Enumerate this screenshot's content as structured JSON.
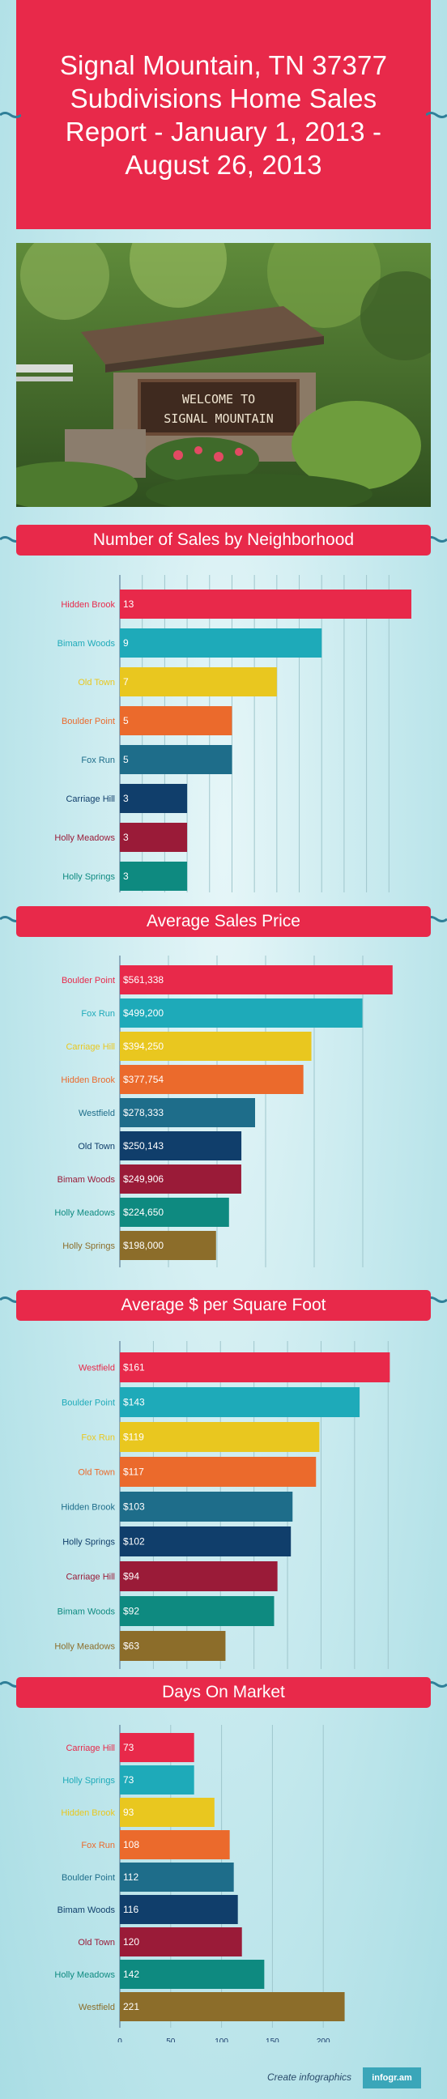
{
  "title": "Signal Mountain, TN 37377 Subdivisions Home Sales Report - January 1, 2013 - August 26, 2013",
  "photo": {
    "sign_line1": "WELCOME TO",
    "sign_line2": "SIGNAL MOUNTAIN"
  },
  "colors": [
    "#e8294a",
    "#1eaab9",
    "#e9c71f",
    "#eb6a2c",
    "#1e6d8a",
    "#103e6b",
    "#9a1b38",
    "#0e8a80",
    "#8c6d2a"
  ],
  "chart_data": [
    {
      "type": "bar",
      "orientation": "horizontal",
      "title": "Number of Sales by Neighborhood",
      "categories": [
        "Hidden Brook",
        "Bimam Woods",
        "Old Town",
        "Boulder Point",
        "Fox Run",
        "Carriage Hill",
        "Holly Meadows",
        "Holly Springs"
      ],
      "values": [
        13,
        9,
        7,
        5,
        5,
        3,
        3,
        3
      ],
      "value_labels": [
        "13",
        "9",
        "7",
        "5",
        "5",
        "3",
        "3",
        "3"
      ],
      "xlim": [
        0,
        13
      ],
      "ticks": [
        0,
        1,
        2,
        3,
        4,
        5,
        6,
        7,
        8,
        9,
        10,
        11,
        12
      ],
      "grid": true
    },
    {
      "type": "bar",
      "orientation": "horizontal",
      "title": "Average Sales Price",
      "categories": [
        "Boulder Point",
        "Fox Run",
        "Carriage Hill",
        "Hidden Brook",
        "Westfield",
        "Old Town",
        "Bimam Woods",
        "Holly Meadows",
        "Holly Springs"
      ],
      "values": [
        561338,
        499200,
        394250,
        377754,
        278333,
        250143,
        249906,
        224650,
        198000
      ],
      "value_labels": [
        "$561,338",
        "$499,200",
        "$394,250",
        "$377,754",
        "$278,333",
        "$250,143",
        "$249,906",
        "$224,650",
        "$198,000"
      ],
      "xlim": [
        0,
        600000
      ],
      "ticks": [
        0,
        100000,
        200000,
        300000,
        400000,
        500000
      ],
      "tick_labels": [
        "0",
        "100",
        "200",
        "300",
        "400",
        "500"
      ],
      "grid": true
    },
    {
      "type": "bar",
      "orientation": "horizontal",
      "title": "Average $ per Square Foot",
      "categories": [
        "Westfield",
        "Boulder Point",
        "Fox Run",
        "Old Town",
        "Hidden Brook",
        "Holly Springs",
        "Carriage Hill",
        "Bimam Woods",
        "Holly Meadows"
      ],
      "values": [
        161,
        143,
        119,
        117,
        103,
        102,
        94,
        92,
        63
      ],
      "value_labels": [
        "$161",
        "$143",
        "$119",
        "$117",
        "$103",
        "$102",
        "$94",
        "$92",
        "$63"
      ],
      "xlim": [
        0,
        170
      ],
      "ticks": [
        0,
        20,
        40,
        60,
        80,
        100,
        120,
        140,
        160
      ],
      "grid": true
    },
    {
      "type": "bar",
      "orientation": "horizontal",
      "title": "Days On Market",
      "categories": [
        "Carriage Hill",
        "Holly Springs",
        "Hidden Brook",
        "Fox Run",
        "Boulder Point",
        "Bimam Woods",
        "Old Town",
        "Holly Meadows",
        "Westfield"
      ],
      "values": [
        73,
        73,
        93,
        108,
        112,
        116,
        120,
        142,
        221
      ],
      "value_labels": [
        "73",
        "73",
        "93",
        "108",
        "112",
        "116",
        "120",
        "142",
        "221"
      ],
      "xlim": [
        0,
        250
      ],
      "ticks": [
        0,
        50,
        100,
        150,
        200
      ],
      "grid": true
    }
  ],
  "footer": {
    "text": "Create infographics",
    "badge": "infogr.am"
  }
}
